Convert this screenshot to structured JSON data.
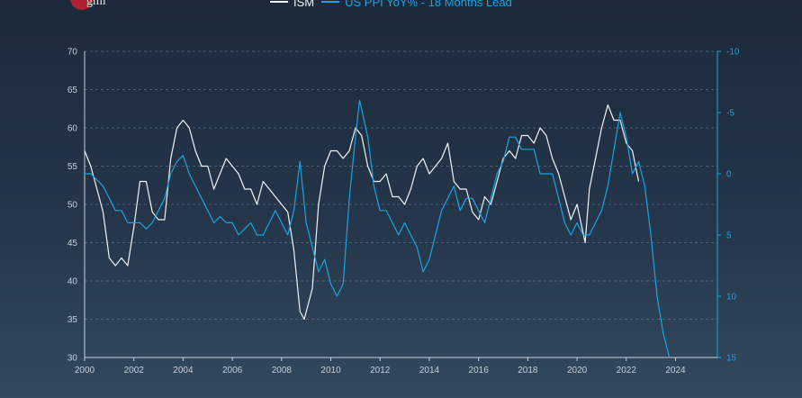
{
  "logo": {
    "text": "gmi"
  },
  "colors": {
    "ism": "#f2f4f7",
    "ppi": "#1aa3e0",
    "axis_left": "#c8d0da",
    "axis_right": "#1aa3e0",
    "grid": "#5b6f87"
  },
  "chart_data": {
    "type": "line",
    "title": "",
    "xlabel": "",
    "ylabel_left": "",
    "ylabel_right": "",
    "xlim": [
      2000,
      2025.7
    ],
    "ylim_left": [
      30,
      70
    ],
    "ylim_right_inverted": [
      -10,
      15
    ],
    "grid": "horizontal dashed",
    "legend_position": "top",
    "x_ticks": [
      "2000",
      "2002",
      "2004",
      "2006",
      "2008",
      "2010",
      "2012",
      "2014",
      "2016",
      "2018",
      "2020",
      "2022",
      "2024"
    ],
    "y_ticks_left": [
      "70",
      "65",
      "60",
      "55",
      "50",
      "45",
      "40",
      "35",
      "30"
    ],
    "y_ticks_right": [
      "-10",
      "-5",
      "0",
      "5",
      "10",
      "15"
    ],
    "series": [
      {
        "name": "ISM",
        "axis": "left",
        "x": [
          2000.0,
          2000.25,
          2000.5,
          2000.75,
          2001.0,
          2001.25,
          2001.5,
          2001.75,
          2002.0,
          2002.25,
          2002.5,
          2002.75,
          2003.0,
          2003.25,
          2003.5,
          2003.75,
          2004.0,
          2004.25,
          2004.5,
          2004.75,
          2005.0,
          2005.25,
          2005.5,
          2005.75,
          2006.0,
          2006.25,
          2006.5,
          2006.75,
          2007.0,
          2007.25,
          2007.5,
          2007.75,
          2008.0,
          2008.25,
          2008.5,
          2008.75,
          2008.92,
          2009.25,
          2009.5,
          2009.75,
          2010.0,
          2010.25,
          2010.5,
          2010.75,
          2011.0,
          2011.25,
          2011.5,
          2011.75,
          2012.0,
          2012.25,
          2012.5,
          2012.75,
          2013.0,
          2013.25,
          2013.5,
          2013.75,
          2014.0,
          2014.25,
          2014.5,
          2014.75,
          2015.0,
          2015.25,
          2015.5,
          2015.75,
          2016.0,
          2016.25,
          2016.5,
          2016.75,
          2017.0,
          2017.25,
          2017.5,
          2017.75,
          2018.0,
          2018.25,
          2018.5,
          2018.75,
          2019.0,
          2019.25,
          2019.5,
          2019.75,
          2020.0,
          2020.33,
          2020.5,
          2020.75,
          2021.0,
          2021.25,
          2021.5,
          2021.75,
          2022.0,
          2022.25,
          2022.5
        ],
        "values": [
          57,
          55,
          52,
          49,
          43,
          42,
          43,
          42,
          47,
          53,
          53,
          49,
          48,
          48,
          56,
          60,
          61,
          60,
          57,
          55,
          55,
          52,
          54,
          56,
          55,
          54,
          52,
          52,
          50,
          53,
          52,
          51,
          50,
          49,
          44,
          36,
          35,
          39,
          50,
          55,
          57,
          57,
          56,
          57,
          60,
          59,
          55,
          53,
          53,
          54,
          51,
          51,
          50,
          52,
          55,
          56,
          54,
          55,
          56,
          58,
          53,
          52,
          52,
          49,
          48,
          51,
          50,
          53,
          56,
          57,
          56,
          59,
          59,
          58,
          60,
          59,
          56,
          54,
          51,
          48,
          50,
          45,
          52,
          56,
          60,
          63,
          61,
          61,
          58,
          57,
          53
        ]
      },
      {
        "name": "US PPI YoY% - 18 Months Lead",
        "axis": "right",
        "x": [
          2000.0,
          2000.25,
          2000.5,
          2000.75,
          2001.0,
          2001.25,
          2001.5,
          2001.75,
          2002.0,
          2002.25,
          2002.5,
          2002.75,
          2003.0,
          2003.25,
          2003.5,
          2003.75,
          2004.0,
          2004.25,
          2004.5,
          2004.75,
          2005.0,
          2005.25,
          2005.5,
          2005.75,
          2006.0,
          2006.25,
          2006.5,
          2006.75,
          2007.0,
          2007.25,
          2007.5,
          2007.75,
          2008.0,
          2008.25,
          2008.5,
          2008.75,
          2009.0,
          2009.25,
          2009.5,
          2009.75,
          2010.0,
          2010.25,
          2010.5,
          2010.75,
          2011.0,
          2011.17,
          2011.5,
          2011.75,
          2012.0,
          2012.25,
          2012.5,
          2012.75,
          2013.0,
          2013.25,
          2013.5,
          2013.75,
          2014.0,
          2014.25,
          2014.5,
          2014.75,
          2015.0,
          2015.25,
          2015.5,
          2015.75,
          2016.0,
          2016.25,
          2016.5,
          2016.75,
          2017.0,
          2017.25,
          2017.5,
          2017.75,
          2018.0,
          2018.25,
          2018.5,
          2018.75,
          2019.0,
          2019.25,
          2019.5,
          2019.75,
          2020.0,
          2020.25,
          2020.5,
          2020.75,
          2021.0,
          2021.25,
          2021.5,
          2021.75,
          2022.0,
          2022.25,
          2022.5,
          2022.75,
          2023.0,
          2023.25,
          2023.5,
          2023.75
        ],
        "values": [
          0,
          0,
          0.5,
          1,
          2,
          3,
          3,
          4,
          4,
          4,
          4.5,
          4,
          3,
          2,
          0,
          -1,
          -1.5,
          0,
          1,
          2,
          3,
          4,
          3.5,
          4,
          4,
          5,
          4.5,
          4,
          5,
          5,
          4,
          3,
          4,
          5,
          3,
          -1,
          4,
          6,
          8,
          7,
          9,
          10,
          9,
          2,
          -3,
          -6,
          -3,
          1,
          3,
          3,
          4,
          5,
          4,
          5,
          6,
          8,
          7,
          5,
          3,
          2,
          1,
          3,
          2,
          2,
          3,
          4,
          2,
          0,
          -1,
          -3,
          -3,
          -2,
          -2,
          -2,
          0,
          0,
          0,
          2,
          4,
          5,
          4,
          5,
          5,
          4,
          3,
          1,
          -2,
          -5,
          -3,
          0,
          -1,
          1,
          5,
          10,
          13,
          15
        ]
      }
    ]
  }
}
